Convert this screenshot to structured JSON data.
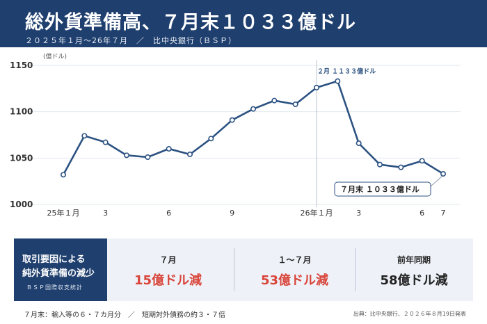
{
  "header": {
    "title": "総外貨準備高、７月末１０３３億ドル",
    "subtitle": "２０２５年１月〜26年７月　／　比中央銀行（ＢＳＰ）"
  },
  "chart_data": {
    "type": "line",
    "unit_label": "(億ドル)",
    "ylim": [
      1000,
      1150
    ],
    "yticks": [
      1000,
      1050,
      1100,
      1150
    ],
    "ytick_labels": [
      "1000",
      "1050",
      "1100",
      "1150"
    ],
    "series": [
      {
        "values": [
          1032,
          1074,
          1067,
          1053,
          1051,
          1060,
          1054,
          1071,
          1091,
          1103,
          1112,
          1108,
          1126,
          1133,
          1066,
          1043,
          1040,
          1047,
          1033
        ]
      }
    ],
    "xtick_labels": [
      {
        "index": 0,
        "label": "25年１月"
      },
      {
        "index": 2,
        "label": "3"
      },
      {
        "index": 5,
        "label": "6"
      },
      {
        "index": 8,
        "label": "9"
      },
      {
        "index": 12,
        "label": "26年１月"
      },
      {
        "index": 14,
        "label": "3"
      },
      {
        "index": 17,
        "label": "6"
      },
      {
        "index": 18,
        "label": "7"
      }
    ],
    "annotations": {
      "peak": "２月 １１３３億ドル",
      "last": "７月末 １０３３億ドル"
    },
    "colors": {
      "line": "#2c5282",
      "grid": "#e3e8ef",
      "divider": "#b8c2cf"
    }
  },
  "panel": {
    "head_line1": "取引要因による",
    "head_line2": "純外貨準備の減少",
    "head_source": "ＢＳＰ国際収支統計",
    "stats": [
      {
        "label": "７月",
        "value": "15億ドル減",
        "color": "#d9453a"
      },
      {
        "label": "１〜７月",
        "value": "53億ドル減",
        "color": "#d9453a"
      },
      {
        "label": "前年同期",
        "value": "58億ドル減",
        "color": "#222222"
      }
    ]
  },
  "footer": {
    "note": "７月末：輸入等の６・７カ月分　／　短期対外債務の約３・７倍",
    "source": "出典：比中央銀行、２０２６年８月19日発表"
  }
}
